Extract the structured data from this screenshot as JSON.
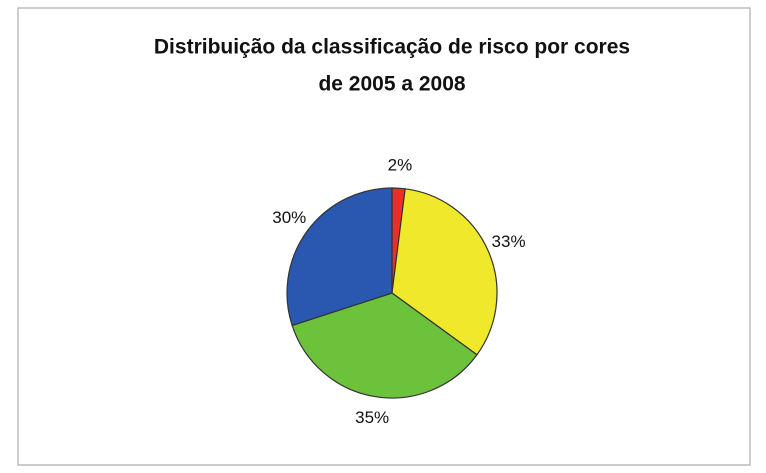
{
  "chart_data": {
    "type": "pie",
    "title": [
      "Distribuição da classificação de risco por cores",
      "de 2005 a 2008"
    ],
    "values": [
      2,
      33,
      35,
      30
    ],
    "value_labels": [
      "2%",
      "33%",
      "35%",
      "30%"
    ],
    "colors": [
      "#e8302a",
      "#f0e82a",
      "#6cc23a",
      "#2a58b0"
    ]
  }
}
